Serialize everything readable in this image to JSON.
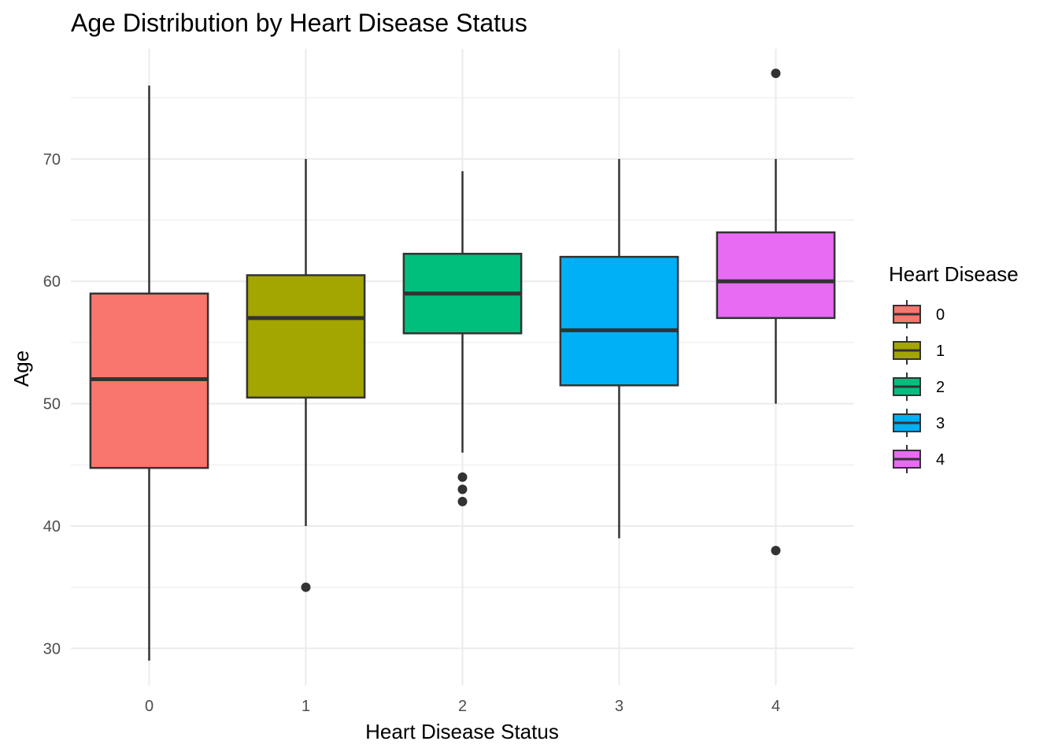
{
  "chart_data": {
    "type": "box",
    "title": "Age Distribution by Heart Disease Status",
    "xlabel": "Heart Disease Status",
    "ylabel": "Age",
    "categories": [
      "0",
      "1",
      "2",
      "3",
      "4"
    ],
    "y_ticks": [
      "30",
      "40",
      "50",
      "60",
      "70"
    ],
    "ylim": [
      27,
      79
    ],
    "grid": true,
    "legend": {
      "title": "Heart Disease",
      "position": "right",
      "entries": [
        "0",
        "1",
        "2",
        "3",
        "4"
      ]
    },
    "boxes": [
      {
        "category": "0",
        "color": "#F8766D",
        "whisker_low": 29,
        "q1": 44.75,
        "median": 52,
        "q3": 59,
        "whisker_high": 76,
        "outliers": []
      },
      {
        "category": "1",
        "color": "#A3A500",
        "whisker_low": 40,
        "q1": 50.5,
        "median": 57,
        "q3": 60.5,
        "whisker_high": 70,
        "outliers": [
          35
        ]
      },
      {
        "category": "2",
        "color": "#00BF7D",
        "whisker_low": 46,
        "q1": 55.75,
        "median": 59,
        "q3": 62.25,
        "whisker_high": 69,
        "outliers": [
          42,
          43,
          44
        ]
      },
      {
        "category": "3",
        "color": "#00B0F6",
        "whisker_low": 39,
        "q1": 51.5,
        "median": 56,
        "q3": 62,
        "whisker_high": 70,
        "outliers": []
      },
      {
        "category": "4",
        "color": "#E76BF3",
        "whisker_low": 50,
        "q1": 57,
        "median": 60,
        "q3": 64,
        "whisker_high": 70,
        "outliers": [
          38,
          77
        ]
      }
    ]
  }
}
